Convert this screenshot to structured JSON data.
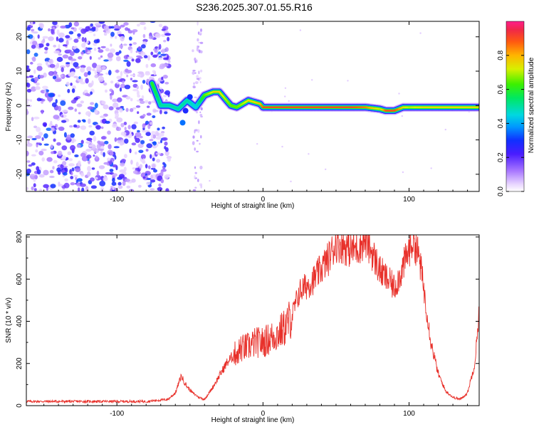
{
  "title": "S236.2025.307.01.55.R16",
  "chart_data": [
    {
      "type": "heatmap",
      "name": "spectrogram",
      "xlabel": "Height of straight line (km)",
      "ylabel": "Frequency (Hz)",
      "xlim": [
        -162,
        148
      ],
      "ylim": [
        -25,
        24.5
      ],
      "x_ticks": [
        -100,
        0,
        100
      ],
      "y_ticks": [
        -20,
        -10,
        0,
        10,
        20
      ],
      "colorbar": {
        "label": "Normalized spectral amplitude",
        "range": [
          0,
          1
        ],
        "ticks": [
          0.0,
          0.2,
          0.4,
          0.6,
          0.8
        ],
        "colors": [
          "#ffffff",
          "#c8a0ff",
          "#7a3cff",
          "#1a1aff",
          "#00b4ff",
          "#00e6c8",
          "#00f000",
          "#c8f000",
          "#ffd200",
          "#ff7a00",
          "#e8323c",
          "#ff2a8a"
        ]
      },
      "noise_region": {
        "x_range": [
          -162,
          -60
        ],
        "y_range": [
          -25,
          24.5
        ],
        "amplitude": 0.3
      },
      "ridge": {
        "x": [
          -76,
          -70,
          -64,
          -58,
          -52,
          -46,
          -40,
          -34,
          -30,
          -26,
          -22,
          -18,
          -14,
          -10,
          -6,
          -2,
          0,
          10,
          20,
          40,
          60,
          70,
          80,
          84,
          90,
          96,
          100,
          110,
          120,
          130,
          140,
          148
        ],
        "frequency": [
          6.5,
          0,
          0,
          -1,
          1.5,
          -0.5,
          3,
          4,
          4,
          2,
          0,
          -0.5,
          0.5,
          1.5,
          1,
          0.5,
          -0.5,
          -0.5,
          -0.5,
          -0.5,
          -0.5,
          -0.5,
          -1,
          -1.5,
          -1.5,
          -0.5,
          -0.5,
          -0.5,
          -0.5,
          -0.5,
          -0.5,
          -0.5
        ],
        "amplitude": [
          0.6,
          0.5,
          0.5,
          0.5,
          0.5,
          0.45,
          0.65,
          0.75,
          0.75,
          0.7,
          0.65,
          0.65,
          0.7,
          0.75,
          0.75,
          0.8,
          0.9,
          0.9,
          0.9,
          0.9,
          0.9,
          0.85,
          0.7,
          0.9,
          0.9,
          0.75,
          0.7,
          0.75,
          0.75,
          0.75,
          0.75,
          0.75
        ]
      }
    },
    {
      "type": "line",
      "name": "snr",
      "xlabel": "Height of straight line (km)",
      "ylabel": "SNR (10 * v/v)",
      "xlim": [
        -162,
        148
      ],
      "ylim": [
        0,
        810
      ],
      "x_ticks": [
        -100,
        0,
        100
      ],
      "y_ticks": [
        0,
        200,
        400,
        600,
        800
      ],
      "color": "#e8302a",
      "series": [
        {
          "name": "SNR",
          "x": [
            -162,
            -140,
            -120,
            -100,
            -80,
            -65,
            -60,
            -56,
            -52,
            -48,
            -44,
            -40,
            -35,
            -30,
            -25,
            -20,
            -15,
            -10,
            -5,
            0,
            5,
            10,
            15,
            20,
            25,
            30,
            35,
            40,
            45,
            50,
            55,
            60,
            65,
            70,
            75,
            80,
            85,
            90,
            95,
            100,
            103,
            107,
            110,
            115,
            120,
            125,
            130,
            135,
            140,
            145,
            148
          ],
          "y": [
            20,
            20,
            20,
            20,
            20,
            30,
            60,
            140,
            90,
            60,
            40,
            30,
            80,
            140,
            200,
            240,
            270,
            280,
            300,
            300,
            320,
            340,
            370,
            430,
            540,
            570,
            600,
            650,
            700,
            770,
            760,
            740,
            750,
            790,
            720,
            640,
            600,
            560,
            640,
            740,
            790,
            700,
            560,
            300,
            150,
            70,
            40,
            30,
            60,
            200,
            450
          ]
        }
      ]
    }
  ]
}
